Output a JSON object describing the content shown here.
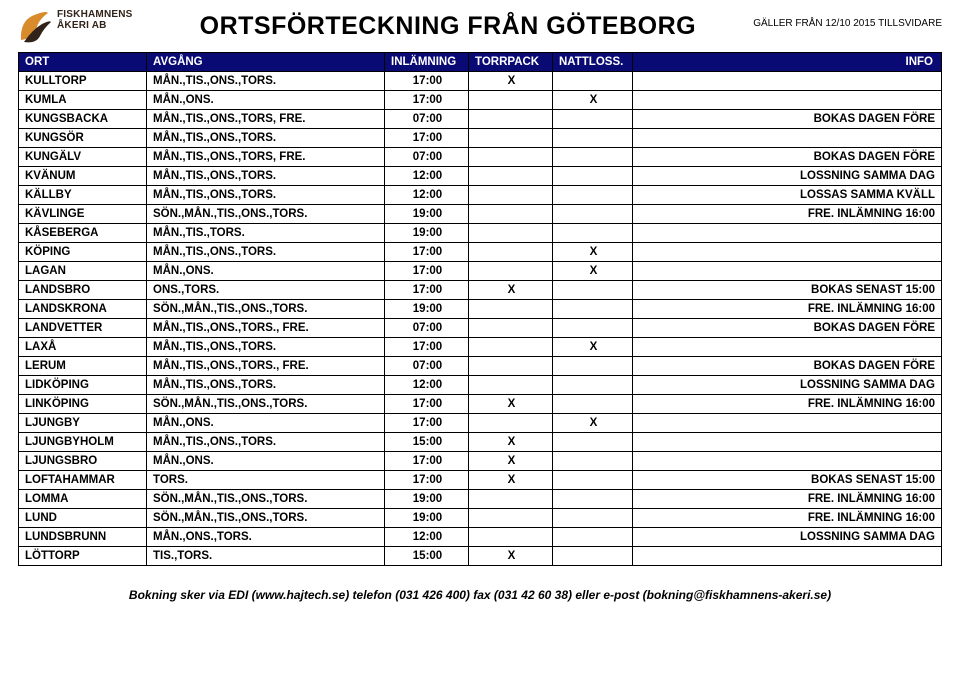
{
  "logo": {
    "line1": "FISKHAMNENS",
    "line2": "ÅKERI AB",
    "colors": {
      "orange": "#d98a2a",
      "dark": "#312319"
    }
  },
  "title": "ORTSFÖRTECKNING FRÅN GÖTEBORG",
  "validity": "GÄLLER FRÅN 12/10 2015 TILLSVIDARE",
  "headers": {
    "ort": "ORT",
    "avgang": "AVGÅNG",
    "inlamning": "INLÄMNING",
    "torrpack": "TORRPACK",
    "nattloss": "NATTLOSS.",
    "info": "INFO"
  },
  "header_bg": "#0a0a74",
  "header_fg": "#ffffff",
  "rows": [
    {
      "ort": "KULLTORP",
      "avgang": "MÅN.,TIS.,ONS.,TORS.",
      "inl": "17:00",
      "torr": "X",
      "natt": "",
      "info": ""
    },
    {
      "ort": "KUMLA",
      "avgang": "MÅN.,ONS.",
      "inl": "17:00",
      "torr": "",
      "natt": "X",
      "info": ""
    },
    {
      "ort": "KUNGSBACKA",
      "avgang": "MÅN.,TIS.,ONS.,TORS, FRE.",
      "inl": "07:00",
      "torr": "",
      "natt": "",
      "info": "BOKAS DAGEN FÖRE"
    },
    {
      "ort": "KUNGSÖR",
      "avgang": "MÅN.,TIS.,ONS.,TORS.",
      "inl": "17:00",
      "torr": "",
      "natt": "",
      "info": ""
    },
    {
      "ort": "KUNGÄLV",
      "avgang": "MÅN.,TIS.,ONS.,TORS, FRE.",
      "inl": "07:00",
      "torr": "",
      "natt": "",
      "info": "BOKAS DAGEN FÖRE"
    },
    {
      "ort": "KVÄNUM",
      "avgang": "MÅN.,TIS.,ONS.,TORS.",
      "inl": "12:00",
      "torr": "",
      "natt": "",
      "info": "LOSSNING SAMMA DAG"
    },
    {
      "ort": "KÄLLBY",
      "avgang": "MÅN.,TIS.,ONS.,TORS.",
      "inl": "12:00",
      "torr": "",
      "natt": "",
      "info": "LOSSAS SAMMA KVÄLL"
    },
    {
      "ort": "KÄVLINGE",
      "avgang": "SÖN.,MÅN.,TIS.,ONS.,TORS.",
      "inl": "19:00",
      "torr": "",
      "natt": "",
      "info": "FRE. INLÄMNING 16:00"
    },
    {
      "ort": "KÅSEBERGA",
      "avgang": "MÅN.,TIS.,TORS.",
      "inl": "19:00",
      "torr": "",
      "natt": "",
      "info": ""
    },
    {
      "ort": "KÖPING",
      "avgang": "MÅN.,TIS.,ONS.,TORS.",
      "inl": "17:00",
      "torr": "",
      "natt": "X",
      "info": ""
    },
    {
      "ort": "LAGAN",
      "avgang": "MÅN.,ONS.",
      "inl": "17:00",
      "torr": "",
      "natt": "X",
      "info": ""
    },
    {
      "ort": "LANDSBRO",
      "avgang": "ONS.,TORS.",
      "inl": "17:00",
      "torr": "X",
      "natt": "",
      "info": "BOKAS SENAST 15:00"
    },
    {
      "ort": "LANDSKRONA",
      "avgang": "SÖN.,MÅN.,TIS.,ONS.,TORS.",
      "inl": "19:00",
      "torr": "",
      "natt": "",
      "info": "FRE. INLÄMNING 16:00"
    },
    {
      "ort": "LANDVETTER",
      "avgang": "MÅN.,TIS.,ONS.,TORS., FRE.",
      "inl": "07:00",
      "torr": "",
      "natt": "",
      "info": "BOKAS DAGEN FÖRE"
    },
    {
      "ort": "LAXÅ",
      "avgang": "MÅN.,TIS.,ONS.,TORS.",
      "inl": "17:00",
      "torr": "",
      "natt": "X",
      "info": ""
    },
    {
      "ort": "LERUM",
      "avgang": "MÅN.,TIS.,ONS.,TORS., FRE.",
      "inl": "07:00",
      "torr": "",
      "natt": "",
      "info": "BOKAS DAGEN FÖRE"
    },
    {
      "ort": "LIDKÖPING",
      "avgang": "MÅN.,TIS.,ONS.,TORS.",
      "inl": "12:00",
      "torr": "",
      "natt": "",
      "info": "LOSSNING SAMMA DAG"
    },
    {
      "ort": "LINKÖPING",
      "avgang": "SÖN.,MÅN.,TIS.,ONS.,TORS.",
      "inl": "17:00",
      "torr": "X",
      "natt": "",
      "info": "FRE. INLÄMNING 16:00"
    },
    {
      "ort": "LJUNGBY",
      "avgang": "MÅN.,ONS.",
      "inl": "17:00",
      "torr": "",
      "natt": "X",
      "info": ""
    },
    {
      "ort": "LJUNGBYHOLM",
      "avgang": "MÅN.,TIS.,ONS.,TORS.",
      "inl": "15:00",
      "torr": "X",
      "natt": "",
      "info": ""
    },
    {
      "ort": "LJUNGSBRO",
      "avgang": "MÅN.,ONS.",
      "inl": "17:00",
      "torr": "X",
      "natt": "",
      "info": ""
    },
    {
      "ort": "LOFTAHAMMAR",
      "avgang": "TORS.",
      "inl": "17:00",
      "torr": "X",
      "natt": "",
      "info": "BOKAS SENAST 15:00"
    },
    {
      "ort": "LOMMA",
      "avgang": "SÖN.,MÅN.,TIS.,ONS.,TORS.",
      "inl": "19:00",
      "torr": "",
      "natt": "",
      "info": "FRE. INLÄMNING 16:00"
    },
    {
      "ort": "LUND",
      "avgang": "SÖN.,MÅN.,TIS.,ONS.,TORS.",
      "inl": "19:00",
      "torr": "",
      "natt": "",
      "info": "FRE. INLÄMNING 16:00"
    },
    {
      "ort": "LUNDSBRUNN",
      "avgang": "MÅN.,ONS.,TORS.",
      "inl": "12:00",
      "torr": "",
      "natt": "",
      "info": "LOSSNING SAMMA DAG"
    },
    {
      "ort": "LÖTTORP",
      "avgang": "TIS.,TORS.",
      "inl": "15:00",
      "torr": "X",
      "natt": "",
      "info": ""
    }
  ],
  "footer": "Bokning sker via EDI (www.hajtech.se) telefon (031 426 400) fax (031 42 60 38) eller e-post (bokning@fiskhamnens-akeri.se)"
}
